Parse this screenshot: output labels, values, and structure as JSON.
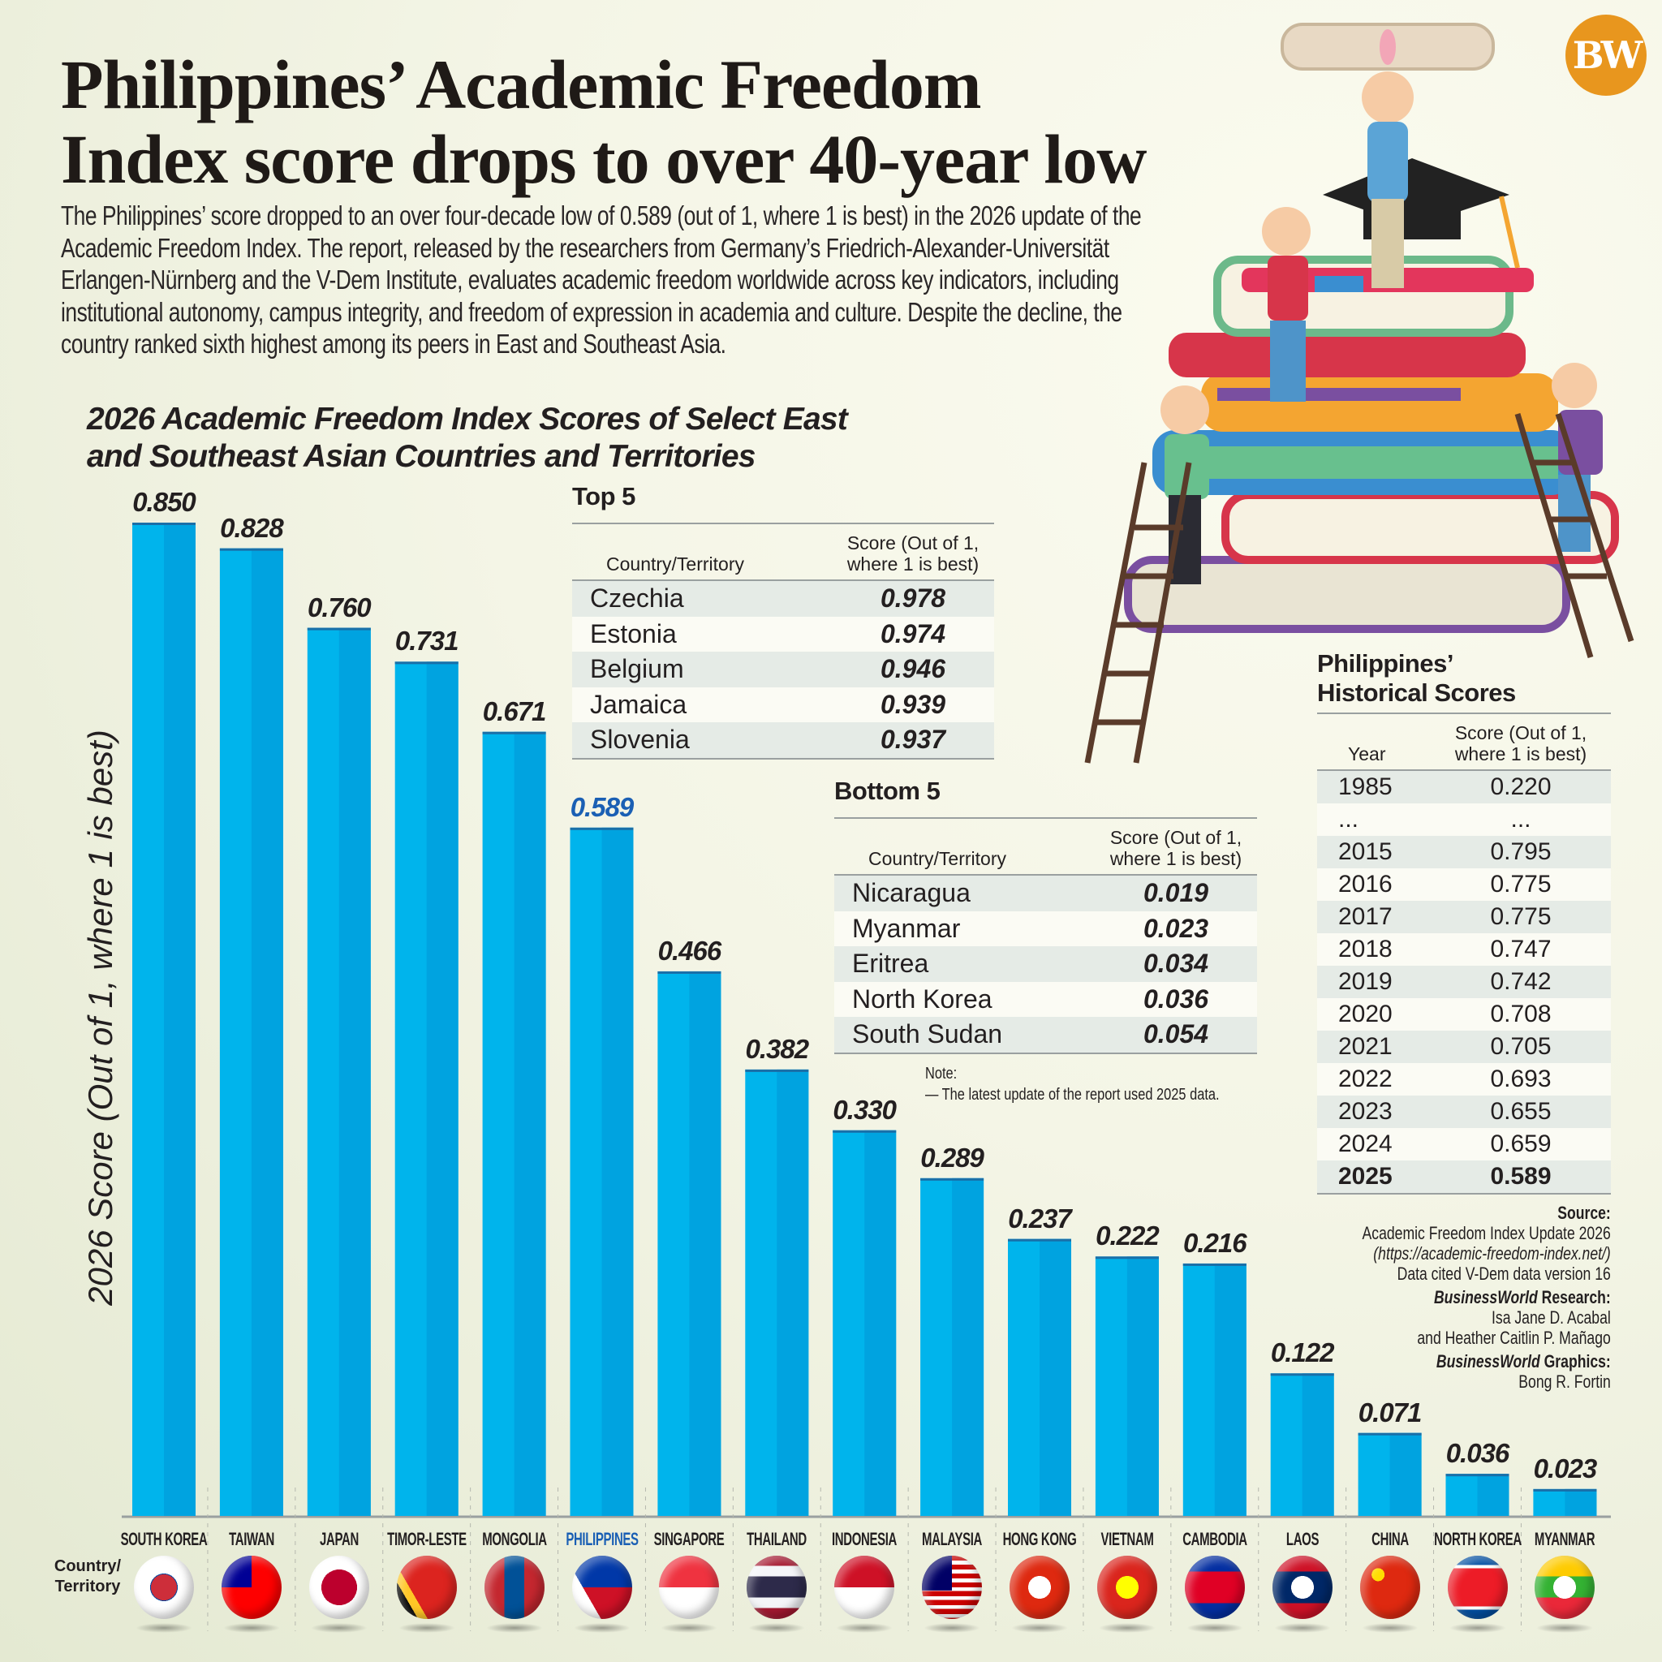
{
  "header": {
    "title_line1": "Philippines’ Academic Freedom",
    "title_line2": "Index score drops to over 40-year low",
    "intro": "The Philippines’ score dropped to an over four-decade low of 0.589 (out of 1, where 1 is best) in the 2026 update of the Academic Freedom Index. The report, released by the researchers from Germany’s Friedrich-Alexander-Universität Erlangen-Nürnberg and the V-Dem Institute, evaluates academic freedom worldwide across key indicators, including institutional autonomy, campus integrity, and freedom of expression in academia and culture. Despite the decline, the country ranked sixth highest among its peers in East and Southeast Asia.",
    "logo": "BW"
  },
  "chart_data": {
    "type": "bar",
    "title_line1": "2026 Academic Freedom Index Scores of Select East",
    "title_line2": "and Southeast Asian Countries and Territories",
    "ylabel": "2026 Score (Out of 1, where 1 is best)",
    "xlabel": "Country/ Territory",
    "categories": [
      "SOUTH KOREA",
      "TAIWAN",
      "JAPAN",
      "TIMOR-LESTE",
      "MONGOLIA",
      "PHILIPPINES",
      "SINGAPORE",
      "THAILAND",
      "INDONESIA",
      "MALAYSIA",
      "HONG KONG",
      "VIETNAM",
      "CAMBODIA",
      "LAOS",
      "CHINA",
      "NORTH KOREA",
      "MYANMAR"
    ],
    "values": [
      0.85,
      0.828,
      0.76,
      0.731,
      0.671,
      0.589,
      0.466,
      0.382,
      0.33,
      0.289,
      0.237,
      0.222,
      0.216,
      0.122,
      0.071,
      0.036,
      0.023
    ],
    "value_labels": [
      "0.850",
      "0.828",
      "0.760",
      "0.731",
      "0.671",
      "0.589",
      "0.466",
      "0.382",
      "0.330",
      "0.289",
      "0.237",
      "0.222",
      "0.216",
      "0.122",
      "0.071",
      "0.036",
      "0.023"
    ],
    "highlight": "PHILIPPINES",
    "ylim": [
      0,
      1
    ],
    "grid": false,
    "colors": {
      "bar": "#00b4ec",
      "bar_shade": "#00a3e0",
      "highlight_text": "#1a5fb4"
    }
  },
  "top5": {
    "title": "Top 5",
    "col1": "Country/Territory",
    "col2": "Score (Out of 1, where 1 is best)",
    "rows": [
      [
        "Czechia",
        "0.978"
      ],
      [
        "Estonia",
        "0.974"
      ],
      [
        "Belgium",
        "0.946"
      ],
      [
        "Jamaica",
        "0.939"
      ],
      [
        "Slovenia",
        "0.937"
      ]
    ]
  },
  "bottom5": {
    "title": "Bottom 5",
    "col1": "Country/Territory",
    "col2": "Score (Out of 1, where 1 is best)",
    "rows": [
      [
        "Nicaragua",
        "0.019"
      ],
      [
        "Myanmar",
        "0.023"
      ],
      [
        "Eritrea",
        "0.034"
      ],
      [
        "North Korea",
        "0.036"
      ],
      [
        "South Sudan",
        "0.054"
      ]
    ]
  },
  "note": {
    "label": "Note:",
    "text": "— The latest update of the report used 2025 data."
  },
  "historical": {
    "title_line1": "Philippines’",
    "title_line2": "Historical  Scores",
    "col1": "Year",
    "col2": "Score (Out of 1, where 1 is best)",
    "rows": [
      [
        "1985",
        "0.220"
      ],
      [
        "...",
        "..."
      ],
      [
        "2015",
        "0.795"
      ],
      [
        "2016",
        "0.775"
      ],
      [
        "2017",
        "0.775"
      ],
      [
        "2018",
        "0.747"
      ],
      [
        "2019",
        "0.742"
      ],
      [
        "2020",
        "0.708"
      ],
      [
        "2021",
        "0.705"
      ],
      [
        "2022",
        "0.693"
      ],
      [
        "2023",
        "0.655"
      ],
      [
        "2024",
        "0.659"
      ],
      [
        "2025",
        "0.589"
      ]
    ]
  },
  "source": {
    "label": "Source:",
    "line1": "Academic Freedom Index Update 2026",
    "line2": "(https://academic-freedom-index.net/)",
    "line3": "Data cited V-Dem data version 16",
    "research_brand": "BusinessWorld",
    "research_label": " Research:",
    "research1": "Isa Jane D. Acabal",
    "research2": "and Heather Caitlin P. Mañago",
    "graphics_brand": "BusinessWorld",
    "graphics_label": " Graphics:",
    "graphics1": "Bong R. Fortin"
  }
}
